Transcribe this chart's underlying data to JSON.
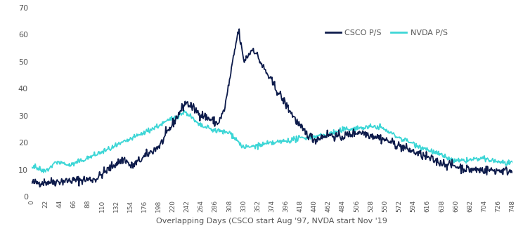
{
  "xlabel": "Overlapping Days (CSCO start Aug '97, NVDA start Nov '19",
  "csco_color": "#0d1b4b",
  "nvda_color": "#3dd6d6",
  "legend_text_color": "#555555",
  "line_width": 1.3,
  "ylim": [
    0,
    70
  ],
  "xlim": [
    0,
    748
  ],
  "yticks": [
    0,
    10,
    20,
    30,
    40,
    50,
    60,
    70
  ],
  "xticks": [
    0,
    22,
    44,
    66,
    88,
    110,
    132,
    154,
    176,
    198,
    220,
    242,
    264,
    286,
    308,
    330,
    352,
    374,
    396,
    418,
    440,
    462,
    484,
    506,
    528,
    550,
    572,
    594,
    616,
    638,
    660,
    682,
    704,
    726,
    748
  ]
}
